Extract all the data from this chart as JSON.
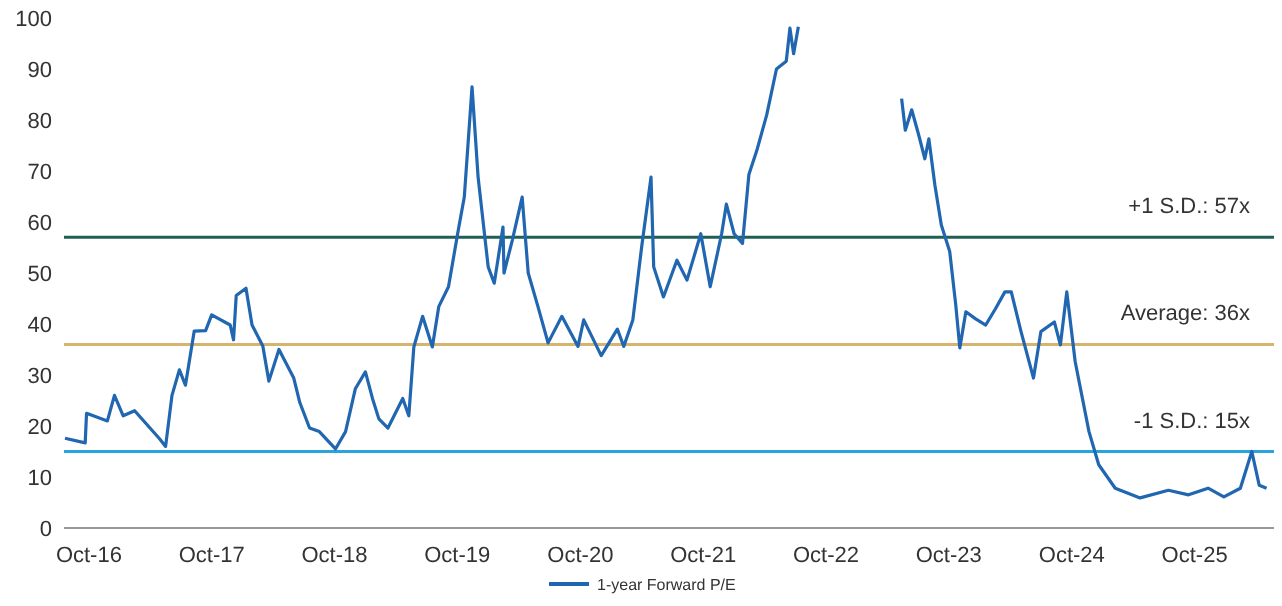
{
  "chart_data": {
    "type": "line",
    "x": [
      "2016-07-22",
      "2016-09-20",
      "2016-09-24",
      "2016-11-25",
      "2016-12-16",
      "2017-01-11",
      "2017-02-14",
      "2017-04-29",
      "2017-05-17",
      "2017-06-05",
      "2017-06-27",
      "2017-07-15",
      "2017-08-10",
      "2017-09-13",
      "2017-10-01",
      "2017-11-25",
      "2017-12-05",
      "2017-12-13",
      "2018-01-11",
      "2018-01-29",
      "2018-03-02",
      "2018-03-20",
      "2018-04-19",
      "2018-06-02",
      "2018-06-20",
      "2018-07-19",
      "2018-08-17",
      "2018-10-04",
      "2018-11-03",
      "2018-12-02",
      "2019-01-01",
      "2019-01-22",
      "2019-02-10",
      "2019-03-09",
      "2019-04-22",
      "2019-05-10",
      "2019-05-25",
      "2019-06-20",
      "2019-07-19",
      "2019-08-07",
      "2019-09-05",
      "2019-10-04",
      "2019-10-22",
      "2019-11-14",
      "2019-12-02",
      "2020-01-01",
      "2020-01-19",
      "2020-02-14",
      "2020-02-17",
      "2020-03-13",
      "2020-04-11",
      "2020-04-29",
      "2020-05-28",
      "2020-06-27",
      "2020-08-07",
      "2020-09-24",
      "2020-10-11",
      "2020-12-02",
      "2021-01-19",
      "2021-02-07",
      "2021-03-06",
      "2021-04-01",
      "2021-04-29",
      "2021-05-07",
      "2021-06-05",
      "2021-07-15",
      "2021-08-14",
      "2021-09-24",
      "2021-10-22",
      "2021-11-25",
      "2021-12-09",
      "2022-01-01",
      "2022-01-26",
      "2022-02-14",
      "2022-03-09",
      "2022-04-08",
      "2022-05-07",
      "2022-06-05",
      "2022-06-16",
      "2022-06-27",
      "2022-07-11",
      "2022-11-25",
      "2023-05-14",
      "2023-05-25",
      "2023-06-13",
      "2023-07-04",
      "2023-07-22",
      "2023-08-03",
      "2023-08-21",
      "2023-09-09",
      "2023-10-04",
      "2023-10-22",
      "2023-11-03",
      "2023-11-21",
      "2023-12-20",
      "2024-01-19",
      "2024-02-17",
      "2024-03-16",
      "2024-04-04",
      "2024-05-03",
      "2024-06-09",
      "2024-07-01",
      "2024-08-10",
      "2024-08-28",
      "2024-09-16",
      "2024-10-11",
      "2024-11-21",
      "2024-12-20",
      "2025-02-07",
      "2025-04-22",
      "2025-07-15",
      "2025-09-13",
      "2025-11-10",
      "2025-12-27",
      "2026-02-14",
      "2026-03-20",
      "2026-04-11",
      "2026-05-03"
    ],
    "series": [
      {
        "name": "1-year Forward P/E",
        "color": "#2166b0",
        "values": [
          17.6,
          16.7,
          22.5,
          21,
          26,
          22,
          23,
          17.5,
          16,
          26,
          31,
          28,
          38.6,
          38.7,
          41.8,
          39.8,
          36.9,
          45.6,
          47,
          39.8,
          35.7,
          28.8,
          35,
          29.4,
          24.6,
          19.6,
          18.9,
          15.5,
          18.9,
          27.3,
          30.6,
          25.4,
          21.4,
          19.6,
          25.4,
          22,
          35.5,
          41.5,
          35.5,
          43.4,
          47.3,
          58.4,
          64.9,
          86.5,
          68.8,
          51.2,
          48,
          59,
          50,
          56.5,
          64.9,
          50,
          43.4,
          36.3,
          41.5,
          35.6,
          40.8,
          33.8,
          39,
          35.6,
          40.8,
          55,
          68.8,
          51.2,
          45.3,
          52.5,
          48.6,
          57.7,
          47.3,
          57.7,
          63.5,
          57.7,
          55.8,
          69.3,
          73.9,
          81,
          90,
          91.5,
          98,
          93,
          98.3,
          null,
          84.2,
          78,
          82,
          77,
          72.4,
          76.3,
          67.2,
          59.4,
          54.2,
          43.7,
          35.3,
          42.4,
          41,
          39.8,
          43,
          46.3,
          46.3,
          38.5,
          29.4,
          38.5,
          40.4,
          35.9,
          46.3,
          32.6,
          18.9,
          12.4,
          7.8,
          5.9,
          7.4,
          6.5,
          7.8,
          6.1,
          7.8,
          15,
          8.4,
          7.8
        ]
      }
    ],
    "xlim": [
      "2016-07-19",
      "2026-05-25"
    ],
    "xticks": [
      {
        "value": "2016-10",
        "label": "Oct-16"
      },
      {
        "value": "2017-10",
        "label": "Oct-17"
      },
      {
        "value": "2018-10",
        "label": "Oct-18"
      },
      {
        "value": "2019-10",
        "label": "Oct-19"
      },
      {
        "value": "2020-10",
        "label": "Oct-20"
      },
      {
        "value": "2021-10",
        "label": "Oct-21"
      },
      {
        "value": "2022-10",
        "label": "Oct-22"
      },
      {
        "value": "2023-10",
        "label": "Oct-23"
      },
      {
        "value": "2024-10",
        "label": "Oct-24"
      },
      {
        "value": "2025-10",
        "label": "Oct-25"
      }
    ],
    "ylim": [
      0,
      100
    ],
    "yticks": [
      0,
      10,
      20,
      30,
      40,
      50,
      60,
      70,
      80,
      90,
      100
    ],
    "ref_lines": [
      {
        "axis": "y",
        "value": 57,
        "label": "+1 S.D.: 57x",
        "color": "#1f5f55"
      },
      {
        "axis": "y",
        "value": 36,
        "label": "Average:  36x",
        "color": "#d6b46e"
      },
      {
        "axis": "y",
        "value": 15,
        "label": "-1 S.D.: 15x",
        "color": "#2aa5dc"
      }
    ],
    "grid": false,
    "legend": "bottom"
  }
}
